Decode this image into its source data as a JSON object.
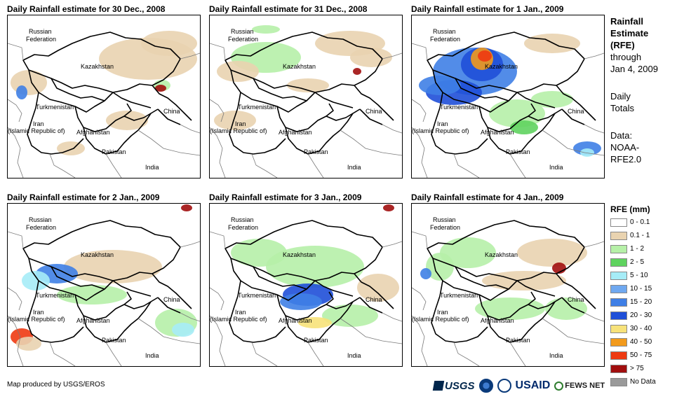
{
  "panels": [
    {
      "title": "Daily Rainfall estimate for 30 Dec., 2008"
    },
    {
      "title": "Daily Rainfall estimate for 31 Dec., 2008"
    },
    {
      "title": "Daily Rainfall estimate for 1 Jan., 2009"
    },
    {
      "title": "Daily Rainfall estimate for 2 Jan., 2009"
    },
    {
      "title": "Daily Rainfall estimate for 3 Jan., 2009"
    },
    {
      "title": "Daily Rainfall estimate for 4 Jan., 2009"
    }
  ],
  "map_labels": {
    "russia_1": "Russian",
    "russia_2": "Federation",
    "kazakhstan": "Kazakhstan",
    "turkmenistan": "Turkmenistan",
    "iran_1": "Iran",
    "iran_2": "(Islamic Republic of)",
    "afghanistan": "Afghanistan",
    "pakistan": "Pakistan",
    "china": "China",
    "india": "India"
  },
  "side_info": {
    "title_1": "Rainfall",
    "title_2": "Estimate",
    "title_3": "(RFE)",
    "through": "through",
    "date": "Jan 4, 2009",
    "daily_1": "Daily",
    "daily_2": "Totals",
    "data_1": "Data:",
    "data_2": "NOAA-",
    "data_3": "RFE2.0"
  },
  "legend": {
    "title": "RFE (mm)",
    "items": [
      {
        "label": "0 - 0.1",
        "color": "#ffffff"
      },
      {
        "label": "0.1 - 1",
        "color": "#e9d3b0"
      },
      {
        "label": "1 - 2",
        "color": "#b6f0a8"
      },
      {
        "label": "2 - 5",
        "color": "#5fd35f"
      },
      {
        "label": "5 - 10",
        "color": "#a6ecf7"
      },
      {
        "label": "10 - 15",
        "color": "#6fa8f0"
      },
      {
        "label": "15 - 20",
        "color": "#3f7fe6"
      },
      {
        "label": "20 - 30",
        "color": "#1f4fd8"
      },
      {
        "label": "30 - 40",
        "color": "#f7e27a"
      },
      {
        "label": "40 - 50",
        "color": "#f29a1c"
      },
      {
        "label": "50 - 75",
        "color": "#ee3a12"
      },
      {
        "label": "> 75",
        "color": "#a10e0e"
      },
      {
        "label": "No Data",
        "color": "#9a9a9a"
      }
    ]
  },
  "footer": {
    "credit": "Map produced by USGS/EROS",
    "logo_usgs": "USGS",
    "logo_usaid": "USAID",
    "logo_fews": "FEWS NET"
  },
  "colors": {
    "border": "#000000",
    "dry": "#e9d3b0",
    "light_green": "#b6f0a8",
    "green": "#5fd35f",
    "cyan": "#a6ecf7",
    "blue": "#3f7fe6",
    "dark_blue": "#1f4fd8",
    "yellow": "#f7e27a",
    "orange": "#f29a1c",
    "red": "#ee3a12",
    "dark_red": "#a10e0e"
  }
}
